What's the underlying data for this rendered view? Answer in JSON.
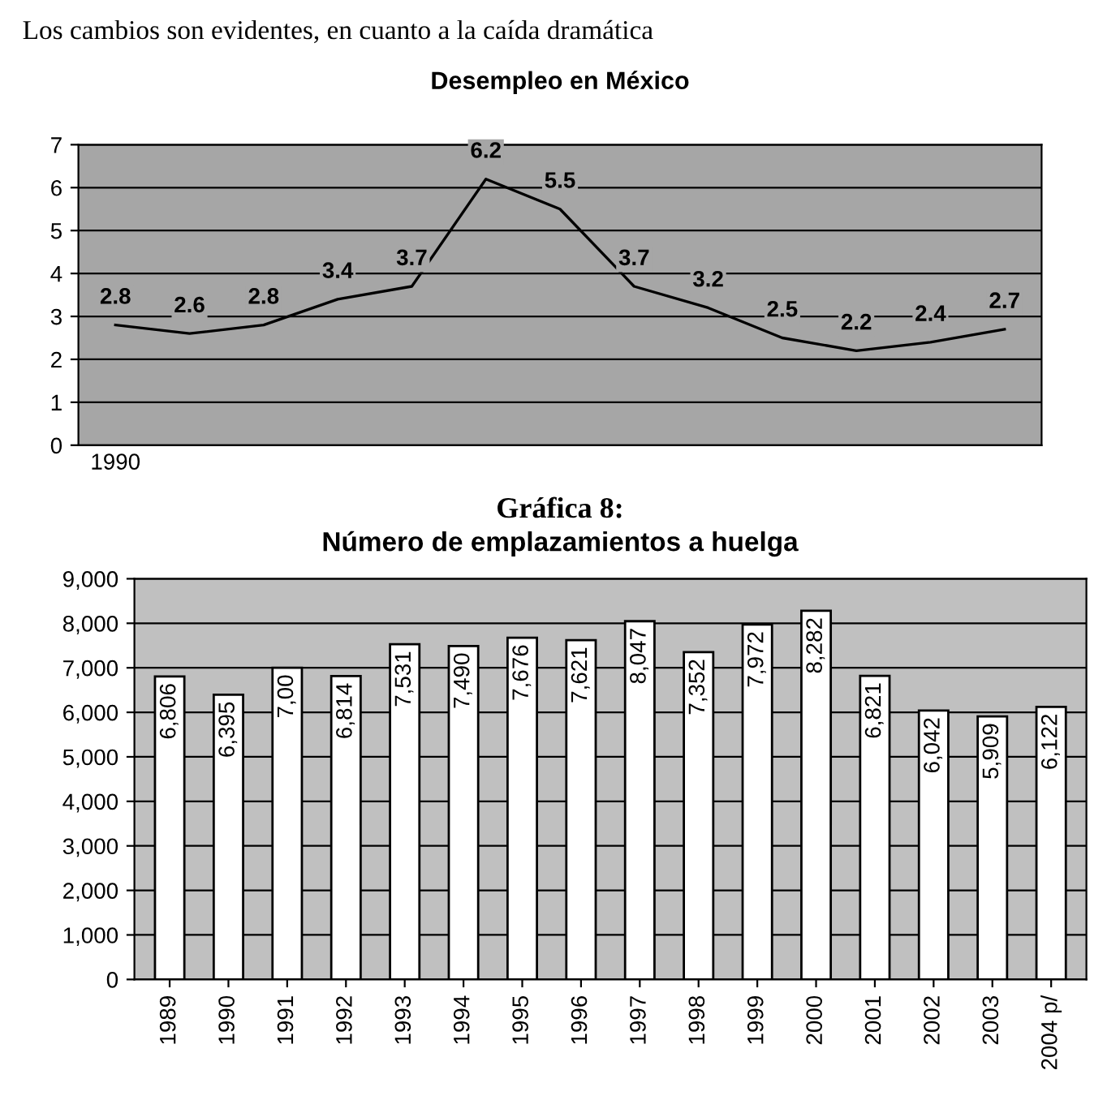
{
  "chart_data": [
    {
      "type": "line",
      "title": "Desempleo en México",
      "annotations": [
        "Los cambios son evidentes, en cuanto a la caída dramática"
      ],
      "categories": [
        "1990",
        null,
        null,
        null,
        null,
        null,
        null,
        null,
        null,
        null,
        null,
        null,
        null
      ],
      "values": [
        2.8,
        2.6,
        2.8,
        3.4,
        3.7,
        6.2,
        5.5,
        3.7,
        3.2,
        2.5,
        2.2,
        2.4,
        2.7
      ],
      "color": "#000000",
      "ylim": [
        0,
        7
      ],
      "yticks": [
        0,
        1,
        2,
        3,
        4,
        5,
        6,
        7
      ],
      "grid": "y",
      "data_labels": true,
      "marker": "none",
      "line_style": "solid"
    },
    {
      "type": "bar",
      "title": "Gráfica 8:",
      "subtitle": "Número de emplazamientos a huelga",
      "categories": [
        "1989",
        "1990",
        "1991",
        "1992",
        "1993",
        "1994",
        "1995",
        "1996",
        "1997",
        "1998",
        "1999",
        "2000",
        "2001",
        "2002",
        "2003",
        "2004 p/"
      ],
      "annotations": [
        {
          "text": "7,00",
          "x": "1991",
          "y": 7000
        }
      ],
      "values": [
        6806,
        6395,
        7000,
        6814,
        7531,
        7490,
        7676,
        7621,
        8047,
        7352,
        7972,
        8282,
        6821,
        6042,
        5909,
        6122
      ],
      "value_labels": [
        "6,806",
        "6,395",
        null,
        "6,814",
        "7,531",
        "7,490",
        "7,676",
        "7,621",
        "8,047",
        "7,352",
        "7,972",
        "8,282",
        "6,821",
        "6,042",
        "5,909",
        "6,122"
      ],
      "color": "#ffffff",
      "ylim": [
        0,
        9000
      ],
      "yticks": [
        {
          "value": 0,
          "label": "0"
        },
        {
          "value": 1000,
          "label": "1,000"
        },
        {
          "value": 2000,
          "label": "2,000"
        },
        {
          "value": 3000,
          "label": "3,000"
        },
        {
          "value": 4000,
          "label": "4,000"
        },
        {
          "value": 5000,
          "label": "5,000"
        },
        {
          "value": 6000,
          "label": "6,000"
        },
        {
          "value": 7000,
          "label": "7,000"
        },
        {
          "value": 8000,
          "label": "8,000"
        },
        {
          "value": 9000,
          "label": "9,000"
        }
      ],
      "grid": "y"
    }
  ]
}
